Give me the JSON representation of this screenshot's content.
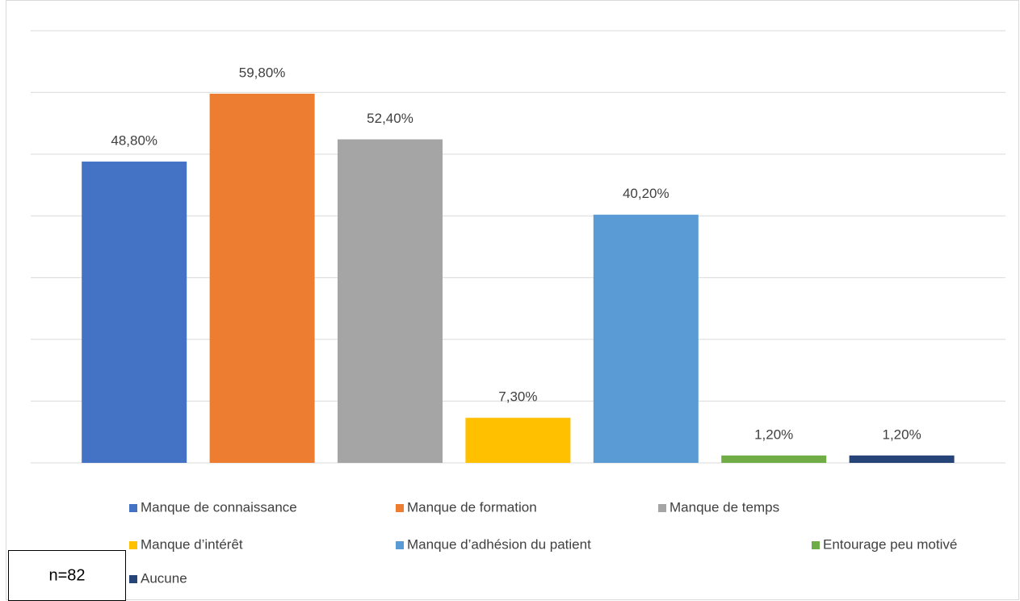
{
  "chart_data": {
    "type": "bar",
    "series": [
      {
        "name": "Manque de connaissance",
        "color": "#4472c4",
        "values": [
          48.8
        ],
        "value_labels": [
          "48,80%"
        ]
      },
      {
        "name": "Manque de formation",
        "color": "#ed7d31",
        "values": [
          59.8
        ],
        "value_labels": [
          "59,80%"
        ]
      },
      {
        "name": "Manque de temps",
        "color": "#a5a5a5",
        "values": [
          52.4
        ],
        "value_labels": [
          "52,40%"
        ]
      },
      {
        "name": "Manque d’intérêt",
        "color": "#ffc000",
        "values": [
          7.3
        ],
        "value_labels": [
          "7,30%"
        ]
      },
      {
        "name": "Manque d’adhésion du patient",
        "color": "#5b9bd5",
        "values": [
          40.2
        ],
        "value_labels": [
          "40,20%"
        ]
      },
      {
        "name": "Entourage peu motivé",
        "color": "#70ad47",
        "values": [
          1.2
        ],
        "value_labels": [
          "1,20%"
        ]
      },
      {
        "name": "Aucune",
        "color": "#264478",
        "values": [
          1.2
        ],
        "value_labels": [
          "1,20%"
        ]
      }
    ],
    "ylim": [
      0,
      70
    ],
    "yticks": [
      0,
      10,
      20,
      30,
      40,
      50,
      60,
      70
    ],
    "grid": true,
    "annotation": "n=82"
  }
}
